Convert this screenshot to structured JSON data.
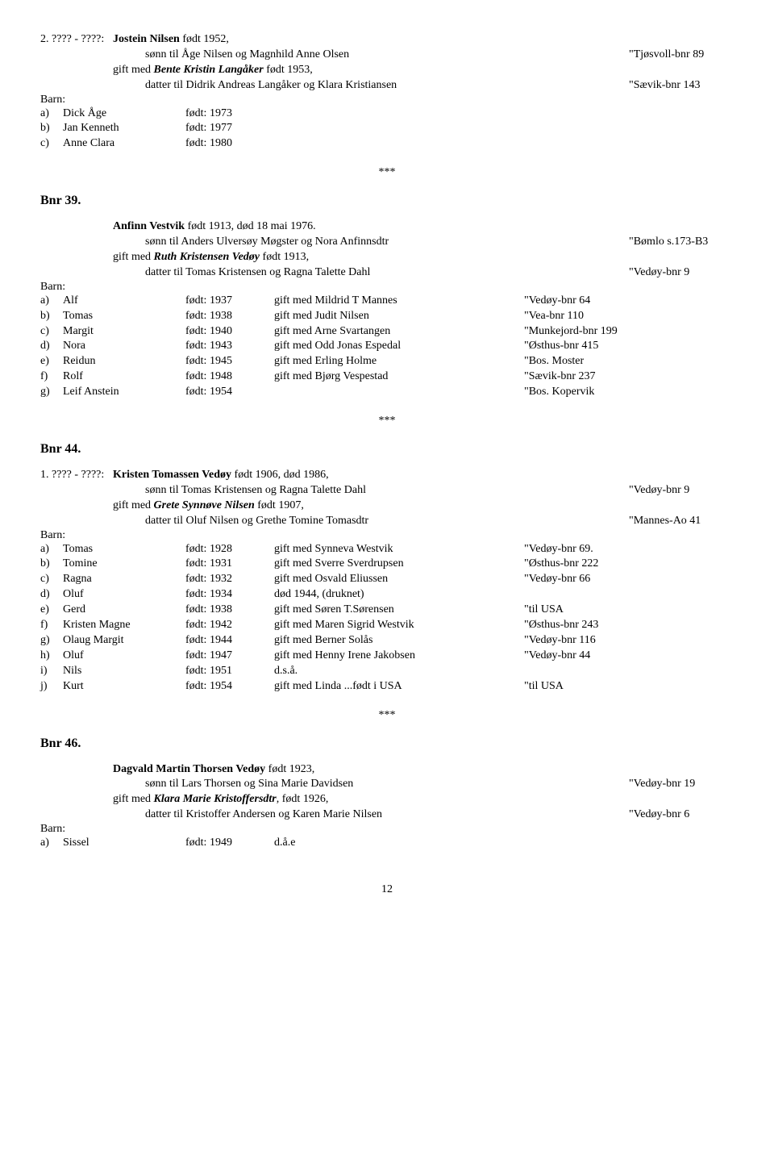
{
  "entry1": {
    "prefix": "2. ???? - ????:",
    "name": "Jostein Nilsen",
    "name_suffix": " født 1952,",
    "line2": "sønn til Åge Nilsen og Magnhild Anne Olsen",
    "ref2": "\"Tjøsvoll-bnr 89",
    "gift_pre": "gift med ",
    "gift_name": "Bente Kristin Langåker",
    "gift_suffix": " født 1953,",
    "line4": "datter til Didrik Andreas Langåker og Klara Kristiansen",
    "ref4": "\"Sævik-bnr 143",
    "barn": "Barn:",
    "children": [
      {
        "l": "a)",
        "n": "Dick Åge",
        "b": "født:   1973",
        "i": "",
        "r": ""
      },
      {
        "l": "b)",
        "n": "Jan Kenneth",
        "b": "født:   1977",
        "i": "",
        "r": ""
      },
      {
        "l": "c)",
        "n": "Anne Clara",
        "b": "født:   1980",
        "i": "",
        "r": ""
      }
    ]
  },
  "stars": "***",
  "bnr39": {
    "title": "Bnr 39.",
    "name": "Anfinn Vestvik",
    "name_suffix": " født 1913, død 18 mai 1976.",
    "line2": "sønn til Anders Ulversøy Møgster og Nora Anfinnsdtr",
    "ref2": "\"Bømlo s.173-B3",
    "gift_pre": "gift med ",
    "gift_name": "Ruth Kristensen Vedøy",
    "gift_suffix": " født 1913,",
    "line4": "datter til Tomas Kristensen og Ragna Talette Dahl",
    "ref4": "\"Vedøy-bnr 9",
    "barn": "Barn:",
    "children": [
      {
        "l": "a)",
        "n": "Alf",
        "b": "født:   1937",
        "i": "gift med Mildrid T Mannes",
        "r": "\"Vedøy-bnr 64"
      },
      {
        "l": "b)",
        "n": "Tomas",
        "b": "født:   1938",
        "i": "gift med Judit Nilsen",
        "r": "\"Vea-bnr 110"
      },
      {
        "l": "c)",
        "n": "Margit",
        "b": "født:   1940",
        "i": "gift med Arne Svartangen",
        "r": "\"Munkejord-bnr 199"
      },
      {
        "l": "d)",
        "n": "Nora",
        "b": "født:   1943",
        "i": "gift med Odd Jonas Espedal",
        "r": "\"Østhus-bnr 415"
      },
      {
        "l": "e)",
        "n": "Reidun",
        "b": "født:   1945",
        "i": "gift med Erling Holme",
        "r": "\"Bos. Moster"
      },
      {
        "l": "f)",
        "n": "Rolf",
        "b": "født:   1948",
        "i": "gift med Bjørg Vespestad",
        "r": "\"Sævik-bnr 237"
      },
      {
        "l": "g)",
        "n": "Leif Anstein",
        "b": "født:   1954",
        "i": "",
        "r": "\"Bos. Kopervik"
      }
    ]
  },
  "bnr44": {
    "title": "Bnr 44.",
    "prefix": "1. ???? - ????:",
    "name": "Kristen Tomassen Vedøy",
    "name_suffix": " født 1906, død 1986,",
    "line2": "sønn til Tomas Kristensen og Ragna Talette Dahl",
    "ref2": "\"Vedøy-bnr 9",
    "gift_pre": "gift med ",
    "gift_name": "Grete Synnøve Nilsen",
    "gift_suffix": " født 1907,",
    "line4": "datter til Oluf Nilsen og Grethe Tomine Tomasdtr",
    "ref4": "\"Mannes-Ao 41",
    "barn": "Barn:",
    "children": [
      {
        "l": "a)",
        "n": "Tomas",
        "b": "født:   1928",
        "i": "gift med Synneva Westvik",
        "r": "\"Vedøy-bnr 69."
      },
      {
        "l": "b)",
        "n": "Tomine",
        "b": "født:   1931",
        "i": "gift med Sverre Sverdrupsen",
        "r": "\"Østhus-bnr 222"
      },
      {
        "l": "c)",
        "n": "Ragna",
        "b": "født:   1932",
        "i": "gift med Osvald Eliussen",
        "r": "\"Vedøy-bnr 66"
      },
      {
        "l": "d)",
        "n": "Oluf",
        "b": "født:   1934",
        "i": "død 1944,   (druknet)",
        "r": ""
      },
      {
        "l": "e)",
        "n": "Gerd",
        "b": "født:   1938",
        "i": "gift med Søren T.Sørensen",
        "r": "\"til USA"
      },
      {
        "l": "f)",
        "n": "Kristen Magne",
        "b": "født:   1942",
        "i": "gift med Maren Sigrid Westvik",
        "r": "\"Østhus-bnr 243"
      },
      {
        "l": "g)",
        "n": "Olaug Margit",
        "b": "født:   1944",
        "i": "gift med Berner Solås",
        "r": "\"Vedøy-bnr 116"
      },
      {
        "l": "h)",
        "n": "Oluf",
        "b": "født:   1947",
        "i": "gift med Henny Irene Jakobsen",
        "r": "\"Vedøy-bnr 44"
      },
      {
        "l": "i)",
        "n": "Nils",
        "b": "født:   1951",
        "i": "d.s.å.",
        "r": ""
      },
      {
        "l": "j)",
        "n": "Kurt",
        "b": "født:   1954",
        "i": "gift med Linda ...født i USA",
        "r": "\"til USA"
      }
    ]
  },
  "bnr46": {
    "title": "Bnr 46.",
    "name": "Dagvald Martin Thorsen Vedøy",
    "name_suffix": " født 1923,",
    "line2": "sønn til Lars Thorsen og Sina Marie Davidsen",
    "ref2": "\"Vedøy-bnr 19",
    "gift_pre": "gift med ",
    "gift_name": "Klara Marie Kristoffersdtr",
    "gift_suffix": ", født 1926,",
    "line4": "datter til Kristoffer Andersen og Karen Marie Nilsen",
    "ref4": "\"Vedøy-bnr 6",
    "barn": "Barn:",
    "children": [
      {
        "l": "a)",
        "n": "Sissel",
        "b": "født:   1949",
        "i": "d.å.e",
        "r": ""
      }
    ]
  },
  "page": "12"
}
